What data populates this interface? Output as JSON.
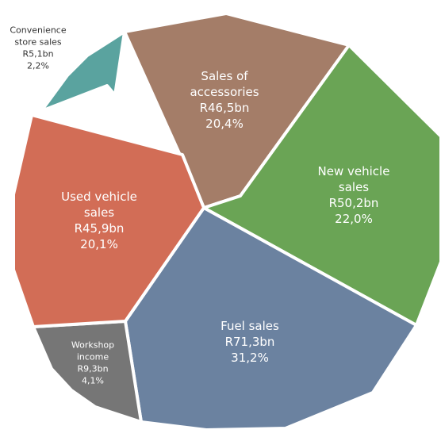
{
  "chart_data": {
    "type": "pie",
    "title": "",
    "legend": "none",
    "unit": "R bn",
    "slices": [
      {
        "name_lines": [
          "Sales of",
          "accessories"
        ],
        "value_label": "R46,5bn",
        "percent_label": "20,4%",
        "value": 46.5,
        "percent": 20.4,
        "color": "#a47d68",
        "text_color": "#ffffff"
      },
      {
        "name_lines": [
          "New vehicle",
          "sales"
        ],
        "value_label": "R50,2bn",
        "percent_label": "22,0%",
        "value": 50.2,
        "percent": 22.0,
        "color": "#6aa455",
        "text_color": "#ffffff"
      },
      {
        "name_lines": [
          "Fuel sales"
        ],
        "value_label": "R71,3bn",
        "percent_label": "31,2%",
        "value": 71.3,
        "percent": 31.2,
        "color": "#6b82a0",
        "text_color": "#ffffff"
      },
      {
        "name_lines": [
          "Workshop",
          "income"
        ],
        "value_label": "R9,3bn",
        "percent_label": "4,1%",
        "value": 9.3,
        "percent": 4.1,
        "color": "#767676",
        "text_color": "#ffffff"
      },
      {
        "name_lines": [
          "Used vehicle",
          "sales"
        ],
        "value_label": "R45,9bn",
        "percent_label": "20,1%",
        "value": 45.9,
        "percent": 20.1,
        "color": "#d26d56",
        "text_color": "#ffffff"
      },
      {
        "name_lines": [
          "Convenience",
          "store sales"
        ],
        "value_label": "R5,1bn",
        "percent_label": "2,2%",
        "value": 5.1,
        "percent": 2.2,
        "color": "#5aa39f",
        "text_color": "#333333"
      }
    ]
  }
}
